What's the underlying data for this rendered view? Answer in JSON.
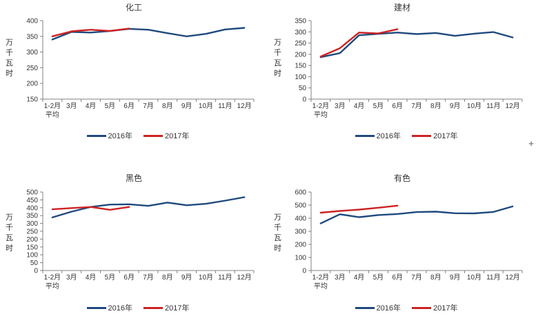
{
  "page": {
    "background": "#ffffff"
  },
  "cursor": {
    "plus_glyph": "+"
  },
  "colors": {
    "series_2016": "#1F497D",
    "series_2017": "#CE2222",
    "axis": "#808080",
    "tick_text": "#333333"
  },
  "chart_data": [
    {
      "type": "line",
      "title": "化工",
      "ylabel": "万千瓦时",
      "xlabel": "",
      "grid": false,
      "legend_position": "bottom",
      "categories": [
        "1-2月\n平均",
        "3月",
        "4月",
        "5月",
        "6月",
        "7月",
        "8月",
        "9月",
        "10月",
        "11月",
        "12月"
      ],
      "ylim": [
        150,
        400
      ],
      "ytick_step": 50,
      "series": [
        {
          "name": "2016年",
          "color": "#1F497D",
          "values": [
            340,
            364,
            362,
            367,
            374,
            371,
            360,
            350,
            358,
            372,
            377
          ]
        },
        {
          "name": "2017年",
          "color": "#CE2222",
          "values": [
            350,
            366,
            371,
            367,
            375
          ]
        }
      ]
    },
    {
      "type": "line",
      "title": "建材",
      "ylabel": "万千瓦时",
      "xlabel": "",
      "grid": false,
      "legend_position": "bottom",
      "categories": [
        "1-2月\n平均",
        "3月",
        "4月",
        "5月",
        "6月",
        "7月",
        "8月",
        "9月",
        "10月",
        "11月",
        "12月"
      ],
      "ylim": [
        0,
        350
      ],
      "ytick_step": 50,
      "series": [
        {
          "name": "2016年",
          "color": "#1F497D",
          "values": [
            187,
            205,
            285,
            291,
            297,
            290,
            295,
            282,
            292,
            299,
            275
          ]
        },
        {
          "name": "2017年",
          "color": "#CE2222",
          "values": [
            190,
            227,
            297,
            293,
            312
          ]
        }
      ]
    },
    {
      "type": "line",
      "title": "黑色",
      "ylabel": "万千瓦时",
      "xlabel": "",
      "grid": false,
      "legend_position": "bottom",
      "categories": [
        "1-2月\n平均",
        "3月",
        "4月",
        "5月",
        "6月",
        "7月",
        "8月",
        "9月",
        "10月",
        "11月",
        "12月"
      ],
      "ylim": [
        0,
        500
      ],
      "ytick_step": 50,
      "series": [
        {
          "name": "2016年",
          "color": "#1F497D",
          "values": [
            338,
            375,
            405,
            420,
            422,
            412,
            433,
            416,
            425,
            445,
            467
          ]
        },
        {
          "name": "2017年",
          "color": "#CE2222",
          "values": [
            390,
            398,
            405,
            387,
            405
          ]
        }
      ]
    },
    {
      "type": "line",
      "title": "有色",
      "ylabel": "万千瓦时",
      "xlabel": "",
      "grid": false,
      "legend_position": "bottom",
      "categories": [
        "1-2月\n平均",
        "3月",
        "4月",
        "5月",
        "6月",
        "7月",
        "8月",
        "9月",
        "10月",
        "11月",
        "12月"
      ],
      "ylim": [
        0,
        600
      ],
      "ytick_step": 100,
      "series": [
        {
          "name": "2016年",
          "color": "#1F497D",
          "values": [
            360,
            430,
            408,
            424,
            432,
            447,
            450,
            438,
            437,
            448,
            490
          ]
        },
        {
          "name": "2017年",
          "color": "#CE2222",
          "values": [
            442,
            455,
            466,
            480,
            496
          ]
        }
      ]
    }
  ]
}
